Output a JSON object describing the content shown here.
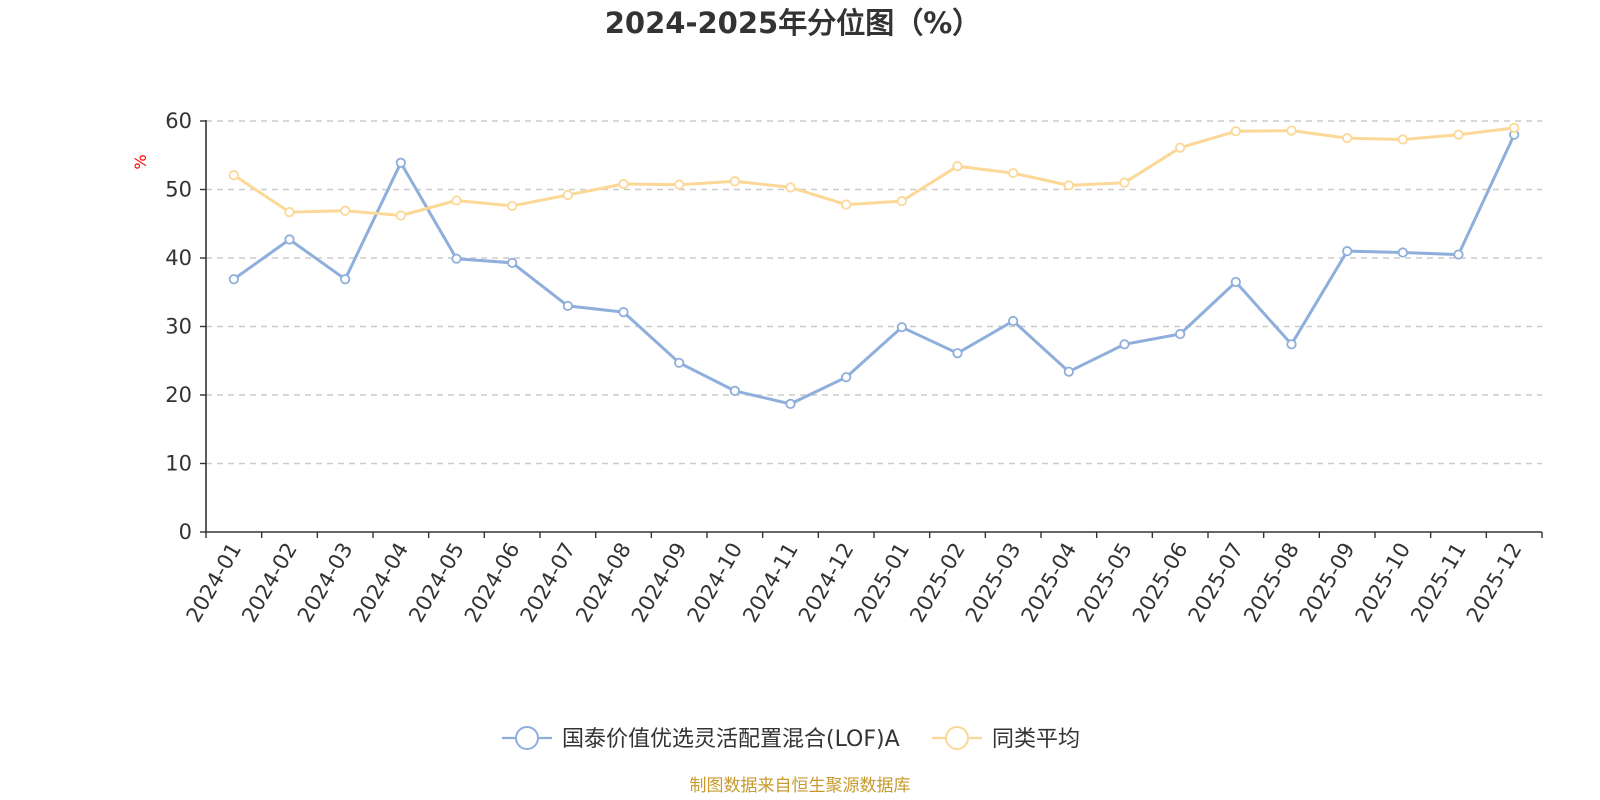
{
  "chart_data": {
    "type": "line",
    "title": "2024-2025年分位图（%）",
    "xlabel": "",
    "ylabel": "%",
    "ylim": [
      0,
      60
    ],
    "yticks": [
      0,
      10,
      20,
      30,
      40,
      50,
      60
    ],
    "grid": true,
    "legend_position": "bottom-center",
    "categories": [
      "2024-01",
      "2024-02",
      "2024-03",
      "2024-04",
      "2024-05",
      "2024-06",
      "2024-07",
      "2024-08",
      "2024-09",
      "2024-10",
      "2024-11",
      "2024-12",
      "2025-01",
      "2025-02",
      "2025-03",
      "2025-04",
      "2025-05",
      "2025-06",
      "2025-07",
      "2025-08",
      "2025-09",
      "2025-10",
      "2025-11",
      "2025-12"
    ],
    "series": [
      {
        "name": "国泰价值优选灵活配置混合(LOF)A",
        "color": "#8eaedb",
        "values": [
          36.9,
          42.7,
          36.9,
          53.9,
          39.9,
          39.3,
          33.0,
          32.1,
          24.7,
          20.6,
          18.7,
          22.6,
          29.9,
          26.1,
          30.8,
          23.4,
          27.4,
          28.9,
          36.5,
          27.4,
          41.0,
          40.8,
          40.5,
          58.0
        ]
      },
      {
        "name": "同类平均",
        "color": "#fbd897",
        "values": [
          52.1,
          46.7,
          46.9,
          46.2,
          48.4,
          47.6,
          49.2,
          50.8,
          50.7,
          51.2,
          50.3,
          47.8,
          48.3,
          53.4,
          52.4,
          50.6,
          51.0,
          56.1,
          58.5,
          58.6,
          57.5,
          57.3,
          58.0,
          59.0
        ]
      }
    ],
    "source": "制图数据来自恒生聚源数据库"
  },
  "colors": {
    "title": "#333333",
    "axis": "#333333",
    "grid": "#cccccc",
    "ylabel": "#ff0000",
    "source": "#c89a2e"
  }
}
